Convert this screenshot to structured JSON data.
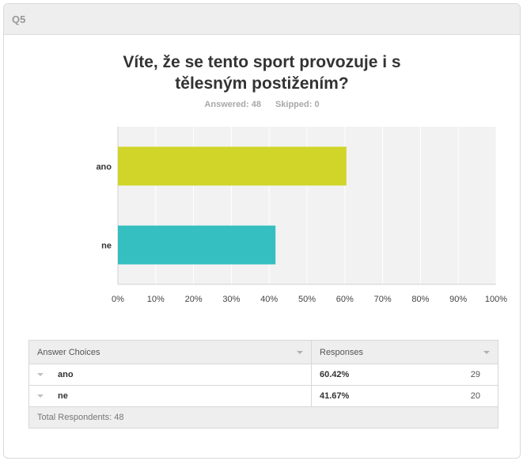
{
  "question": {
    "number": "Q5",
    "title_line1": "Víte, že se tento sport provozuje i s",
    "title_line2": "tělesným postižením?",
    "answered": "Answered: 48",
    "skipped": "Skipped: 0"
  },
  "chart_data": {
    "type": "bar",
    "orientation": "horizontal",
    "categories": [
      "ano",
      "ne"
    ],
    "values": [
      60.42,
      41.67
    ],
    "colors": [
      "#d1d52a",
      "#35bfc1"
    ],
    "xlim": [
      0,
      100
    ],
    "xticks": [
      "0%",
      "10%",
      "20%",
      "30%",
      "40%",
      "50%",
      "60%",
      "70%",
      "80%",
      "90%",
      "100%"
    ],
    "grid": true,
    "legend": "none"
  },
  "table": {
    "header_choices": "Answer Choices",
    "header_responses": "Responses",
    "rows": [
      {
        "choice": "ano",
        "percent": "60.42%",
        "count": "29"
      },
      {
        "choice": "ne",
        "percent": "41.67%",
        "count": "20"
      }
    ],
    "footer": "Total Respondents: 48"
  }
}
